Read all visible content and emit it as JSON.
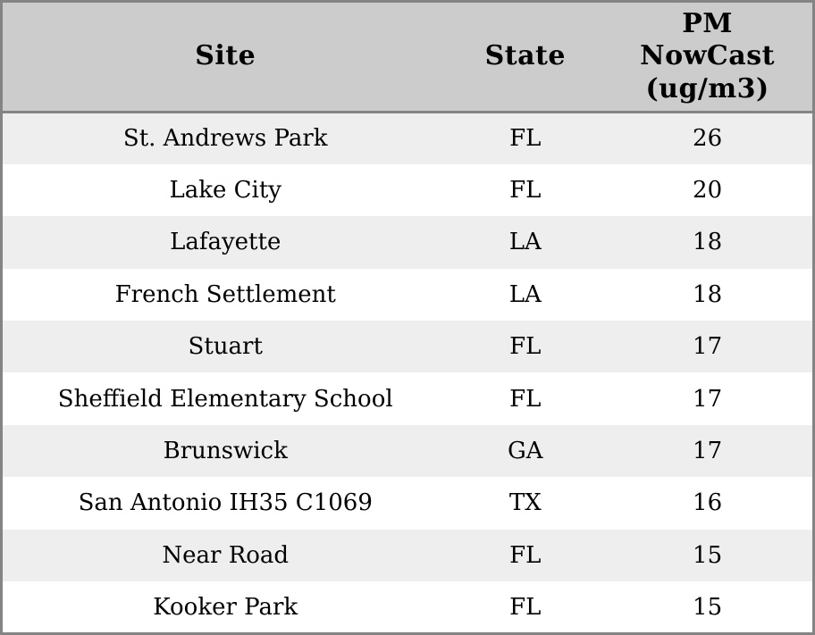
{
  "chart_data": {
    "type": "table",
    "columns": [
      "Site",
      "State",
      "PM NowCast (ug/m3)"
    ],
    "rows": [
      [
        "St. Andrews Park",
        "FL",
        26
      ],
      [
        "Lake City",
        "FL",
        20
      ],
      [
        "Lafayette",
        "LA",
        18
      ],
      [
        "French Settlement",
        "LA",
        18
      ],
      [
        "Stuart",
        "FL",
        17
      ],
      [
        "Sheffield Elementary School",
        "FL",
        17
      ],
      [
        "Brunswick",
        "GA",
        17
      ],
      [
        "San Antonio IH35 C1069",
        "TX",
        16
      ],
      [
        "Near Road",
        "FL",
        15
      ],
      [
        "Kooker Park",
        "FL",
        15
      ]
    ]
  },
  "header": {
    "site": "Site",
    "state": "State",
    "pm": "PM\nNowCast\n(ug/m3)"
  },
  "colors": {
    "header_bg": "#cccccc",
    "stripe_row_bg": "#eeeeee",
    "plain_row_bg": "#ffffff",
    "border": "#848484",
    "text": "#000000"
  }
}
